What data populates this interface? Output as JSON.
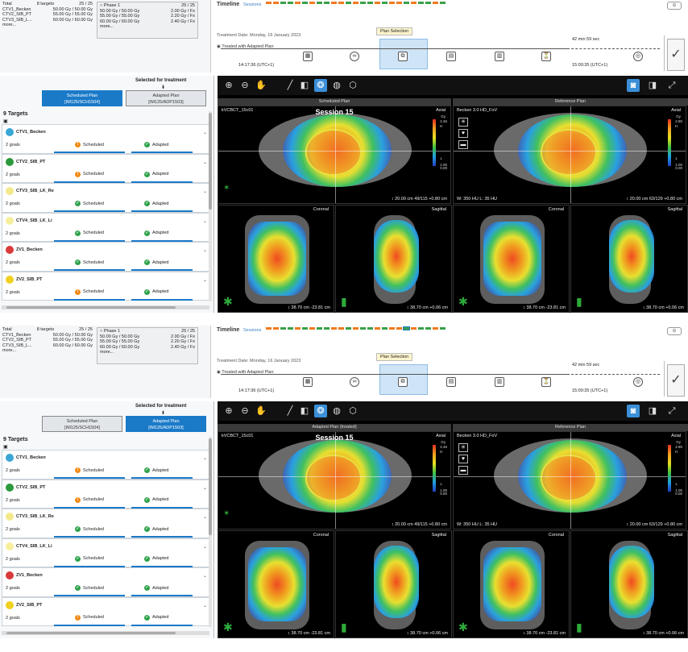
{
  "screens": [
    {
      "summary": {
        "total_label": "Total",
        "total_targets": "8 targets",
        "total_fx": "25 / 25",
        "rows": [
          {
            "name": "CTV1_Becken",
            "dose": "50.00 Gy / 50.00 Gy"
          },
          {
            "name": "CTV2_SIB_PT",
            "dose": "55.00 Gy / 55.00 Gy"
          },
          {
            "name": "CTV3_SIB_L...",
            "dose": "60.00 Gy / 60.00 Gy"
          }
        ],
        "more": "more...",
        "phase": {
          "label": "Phase 1",
          "fx": "25 / 25",
          "rows": [
            {
              "dose": "50.00 Gy / 50.00 Gy",
              "per": "2.00 Gy / Fx"
            },
            {
              "dose": "55.00 Gy / 55.00 Gy",
              "per": "2.20 Gy / Fx"
            },
            {
              "dose": "60.00 Gy / 60.00 Gy",
              "per": "2.40 Gy / Fx"
            }
          ],
          "more": "more..."
        }
      },
      "timeline": {
        "title": "Timeline",
        "sessions_label": "Sessions",
        "treatment_date": "Treatment Date:  Monday, 16 January 2023",
        "treated_label": "Treated with Adapted Plan",
        "plan_selection": "Plan Selection",
        "start_time": "14:17:36 (UTC+1)",
        "end_time": "15:00:35 (UTC+1)",
        "duration": "42 min 59 sec"
      },
      "selected_for_treatment": "Selected for treatment",
      "plan_tabs": [
        {
          "label": "Scheduled Plan",
          "sub": "[IM125/SCH1504]",
          "active": true
        },
        {
          "label": "Adapted Plan",
          "sub": "[IM125/ADP1503]",
          "active": false
        }
      ],
      "targets_title": "9 Targets",
      "viewer": {
        "left_header": "Scheduled Plan",
        "right_header": "Reference Plan",
        "session": "Session 15",
        "left_series": "kVCBCT_15c01",
        "right_series": "Becken 3.0  HD_FoV",
        "axial": "Axial",
        "coronal": "Coronal",
        "sagittal": "Sagittal",
        "gy": "Gy",
        "cb_top": "2.46",
        "cb_top_right": "2.80",
        "cb_h": "H",
        "cb_l": "L",
        "cb_mid": "1.00",
        "cb_low": "0.00",
        "ax_left_info": "↕ 20.00 cm    49/115    +0.80 cm",
        "ax_right_info": "↕ 20.00 cm    63/129    +0.80 cm",
        "ww": "W: 350 HU   L: 35 HU",
        "cor_info": "↕ 38.70 cm   -23.81 cm",
        "sag_info": "↕ 38.70 cm   +0.06 cm"
      }
    },
    {
      "summary": {
        "total_label": "Total",
        "total_targets": "8 targets",
        "total_fx": "25 / 25",
        "rows": [
          {
            "name": "CTV1_Becken",
            "dose": "50.00 Gy / 50.00 Gy"
          },
          {
            "name": "CTV2_SIB_PT",
            "dose": "55.00 Gy / 55.00 Gy"
          },
          {
            "name": "CTV3_SIB_L...",
            "dose": "60.00 Gy / 60.00 Gy"
          }
        ],
        "more": "more...",
        "phase": {
          "label": "Phase 1",
          "fx": "25 / 25",
          "rows": [
            {
              "dose": "50.00 Gy / 50.00 Gy",
              "per": "2.00 Gy / Fx"
            },
            {
              "dose": "55.00 Gy / 55.00 Gy",
              "per": "2.20 Gy / Fx"
            },
            {
              "dose": "60.00 Gy / 60.00 Gy",
              "per": "2.40 Gy / Fx"
            }
          ],
          "more": "more..."
        }
      },
      "timeline": {
        "title": "Timeline",
        "sessions_label": "Sessions",
        "treatment_date": "Treatment Date:  Monday, 16 January 2023",
        "treated_label": "Treated with Adapted Plan",
        "plan_selection": "Plan Selection",
        "start_time": "14:17:36 (UTC+1)",
        "end_time": "15:00:35 (UTC+1)",
        "duration": "42 min 59 sec"
      },
      "selected_for_treatment": "Selected for treatment",
      "plan_tabs": [
        {
          "label": "Scheduled Plan",
          "sub": "[IM125/SCH1504]",
          "active": false
        },
        {
          "label": "Adapted Plan",
          "sub": "[IM125/ADP1503]",
          "active": true
        }
      ],
      "targets_title": "9 Targets",
      "viewer": {
        "left_header": "Adapted Plan (treated)",
        "right_header": "Reference Plan",
        "session": "Session 15",
        "left_series": "kVCBCT_15c01",
        "right_series": "Becken 3.0  HD_FoV",
        "axial": "Axial",
        "coronal": "Coronal",
        "sagittal": "Sagittal",
        "gy": "Gy",
        "cb_top": "2.46",
        "cb_top_right": "2.80",
        "cb_h": "H",
        "cb_l": "L",
        "cb_mid": "1.00",
        "cb_low": "0.00",
        "ax_left_info": "↕ 20.00 cm    49/115    +0.80 cm",
        "ax_right_info": "↕ 20.00 cm    63/129    +0.80 cm",
        "ww": "W: 350 HU   L: 35 HU",
        "cor_info": "↕ 38.70 cm   -23.81 cm",
        "sag_info": "↕ 38.70 cm   +0.06 cm"
      }
    }
  ],
  "targets": [
    {
      "name": "CTV1_Becken",
      "color": "#39a6d6",
      "goals": "2 goals",
      "scheduled": "Scheduled",
      "adapted": "Adapted"
    },
    {
      "name": "CTV2_SIB_PT",
      "color": "#2c9a3c",
      "goals": "2 goals",
      "scheduled": "Scheduled",
      "adapted": "Adapted"
    },
    {
      "name": "CTV3_SIB_LK_Re",
      "color": "#f3e98a",
      "goals": "2 goals",
      "scheduled": "Scheduled",
      "adapted": "Adapted"
    },
    {
      "name": "CTV4_SIB_LK_Li",
      "color": "#f6ef9c",
      "goals": "2 goals",
      "scheduled": "Scheduled",
      "adapted": "Adapted"
    },
    {
      "name": "ZV1_Becken",
      "color": "#d93a3a",
      "goals": "2 goals",
      "scheduled": "Scheduled",
      "adapted": "Adapted"
    },
    {
      "name": "ZV2_SIB_PT",
      "color": "#f0d020",
      "goals": "2 goals",
      "scheduled": "Scheduled",
      "adapted": "Adapted"
    }
  ],
  "target_status": [
    [
      "warn",
      "ok"
    ],
    [
      "warn",
      "ok"
    ],
    [
      "ok",
      "ok"
    ],
    [
      "ok",
      "ok"
    ],
    [
      "ok",
      "ok"
    ],
    [
      "warn",
      "ok"
    ]
  ],
  "colors": {
    "accent": "#1a7ac8",
    "ok": "#2ea24a",
    "warn": "#f08a16",
    "session_green": "#3aa04a",
    "session_orange": "#f07a20"
  }
}
